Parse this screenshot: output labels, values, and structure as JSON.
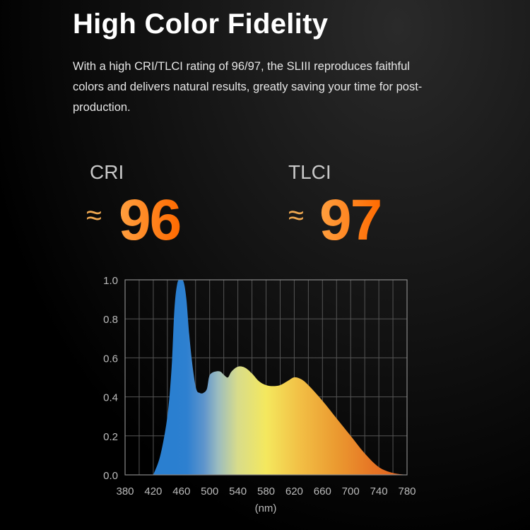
{
  "header": {
    "title": "High Color Fidelity",
    "description": "With a high CRI/TLCI rating of 96/97, the SLIII reproduces faithful colors and delivers natural results, greatly saving your time for post-production."
  },
  "metrics": [
    {
      "label": "CRI",
      "approx": "≈",
      "value": "96"
    },
    {
      "label": "TLCI",
      "approx": "≈",
      "value": "97"
    }
  ],
  "colors": {
    "accent": "#ff7a1a",
    "background": "#000000"
  },
  "chart_data": {
    "type": "area",
    "xlabel": "(nm)",
    "ylabel": "",
    "xlim": [
      380,
      780
    ],
    "ylim": [
      0,
      1.0
    ],
    "xticks": [
      "380",
      "420",
      "460",
      "500",
      "540",
      "580",
      "620",
      "660",
      "700",
      "740",
      "780"
    ],
    "yticks": [
      "0.0",
      "0.2",
      "0.4",
      "0.6",
      "0.8",
      "1.0"
    ],
    "grid": true,
    "x": [
      420,
      430,
      440,
      446,
      450,
      454,
      458,
      463,
      467,
      471,
      476,
      481,
      486,
      491,
      496,
      499,
      502,
      508,
      515,
      521,
      526,
      531,
      540,
      550,
      560,
      570,
      580,
      590,
      600,
      610,
      620,
      630,
      640,
      660,
      680,
      700,
      720,
      740,
      760,
      780
    ],
    "y": [
      0,
      0.1,
      0.3,
      0.55,
      0.85,
      0.98,
      1.0,
      0.99,
      0.9,
      0.72,
      0.55,
      0.44,
      0.42,
      0.42,
      0.44,
      0.5,
      0.52,
      0.53,
      0.53,
      0.51,
      0.5,
      0.53,
      0.555,
      0.55,
      0.52,
      0.48,
      0.46,
      0.455,
      0.46,
      0.48,
      0.5,
      0.49,
      0.46,
      0.38,
      0.29,
      0.2,
      0.11,
      0.04,
      0.01,
      0
    ]
  }
}
